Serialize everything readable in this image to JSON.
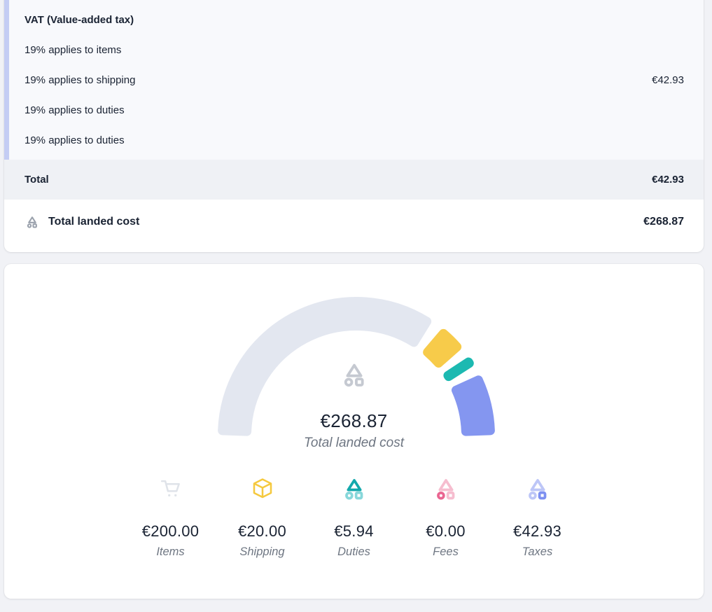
{
  "colors": {
    "page-bg": "#F1F2F6",
    "card-bg": "#FFFFFF",
    "section-bg": "#F8F9FC",
    "total-row-bg": "#EFF1F5",
    "accent-light": "#C4CDF4",
    "accent-dark": "#8C9BEE",
    "text-dark": "#1A2333",
    "text-muted": "#6E7682"
  },
  "tax_card": {
    "header": "VAT (Value-added tax)",
    "rows": [
      {
        "label": "19% applies to items",
        "value": ""
      },
      {
        "label": "19% applies to shipping",
        "value": "€42.93"
      },
      {
        "label": "19% applies to duties",
        "value": ""
      },
      {
        "label": "19% applies to duties",
        "value": ""
      }
    ],
    "total": {
      "label": "Total",
      "value": "€42.93"
    },
    "landed": {
      "label": "Total landed cost",
      "value": "€268.87"
    }
  },
  "chart_data": {
    "type": "gauge",
    "title": "Total landed cost",
    "center_value": "€268.87",
    "total": 268.87,
    "categories": [
      "Items",
      "Shipping",
      "Duties",
      "Fees",
      "Taxes"
    ],
    "values": [
      200.0,
      20.0,
      5.94,
      0.0,
      42.93
    ],
    "display_values": [
      "€200.00",
      "€20.00",
      "€5.94",
      "€0.00",
      "€42.93"
    ],
    "colors": [
      "#E3E7F0",
      "#F7CB4A",
      "#1CB9B1",
      "#EC6A96",
      "#8496F0"
    ],
    "span_deg": 180,
    "gap_deg": 4.5,
    "icon_colors": {
      "items": {
        "cart": "#DFE3E9"
      },
      "shipping": {
        "cube": "#F5C93F"
      },
      "duties": {
        "triangle": "#14A9AC",
        "circle": "#87D7DA",
        "square": "#87D7DA"
      },
      "fees": {
        "triangle": "#F6BDCF",
        "circle": "#EA6591",
        "square": "#F6BDCF"
      },
      "taxes": {
        "triangle": "#BDC6F7",
        "circle": "#BDC6F7",
        "square": "#7D90F1"
      },
      "center": {
        "shape": "#C5C9D1"
      },
      "landed_row": {
        "shape": "#9AA1AC"
      }
    }
  }
}
